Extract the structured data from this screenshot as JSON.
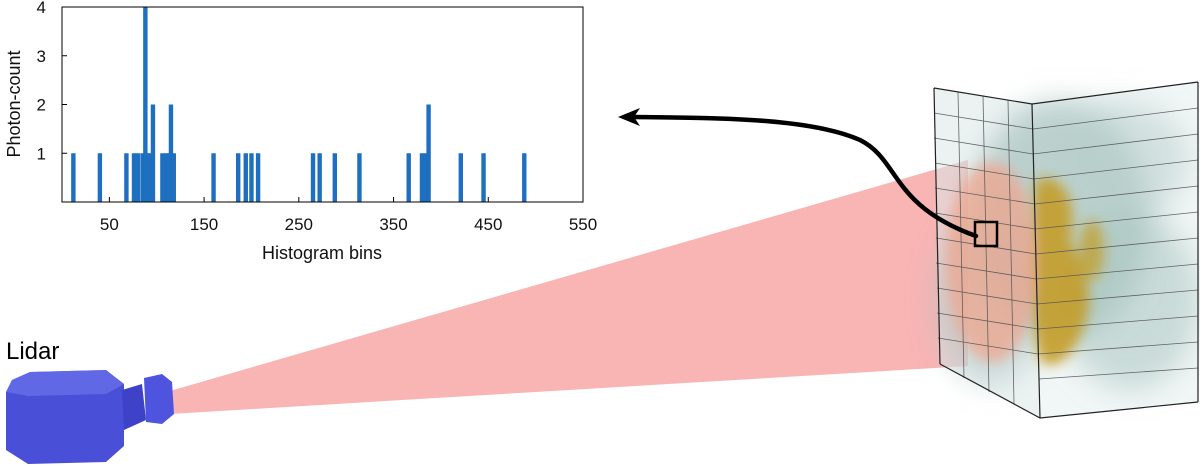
{
  "lidar": {
    "label": "Lidar"
  },
  "colors": {
    "bars": "#1f6fc0",
    "beam": "#f9b4b4",
    "lidar_body": "#4a4fd8",
    "cloud": "#9ab9b4",
    "target_surface": "#c49a1c"
  },
  "chart_data": {
    "type": "bar",
    "xlabel": "Histogram bins",
    "ylabel": "Photon-count",
    "xlim": [
      0,
      550
    ],
    "ylim": [
      0,
      4
    ],
    "x_ticks": [
      50,
      150,
      250,
      350,
      450,
      550
    ],
    "y_ticks": [
      1,
      2,
      3,
      4
    ],
    "grid": false,
    "series": [
      {
        "x": [
          12,
          40,
          68,
          76,
          80,
          85,
          88,
          90,
          92,
          96,
          106,
          110,
          113,
          115,
          118,
          160,
          186,
          194,
          200,
          207,
          265,
          272,
          288,
          314,
          366,
          380,
          384,
          387,
          421,
          445,
          488
        ],
        "y": [
          1,
          1,
          1,
          1,
          1,
          1,
          4,
          1,
          1,
          2,
          1,
          1,
          1,
          2,
          1,
          1,
          1,
          1,
          1,
          1,
          1,
          1,
          1,
          1,
          1,
          1,
          1,
          2,
          1,
          1,
          1
        ]
      }
    ]
  }
}
